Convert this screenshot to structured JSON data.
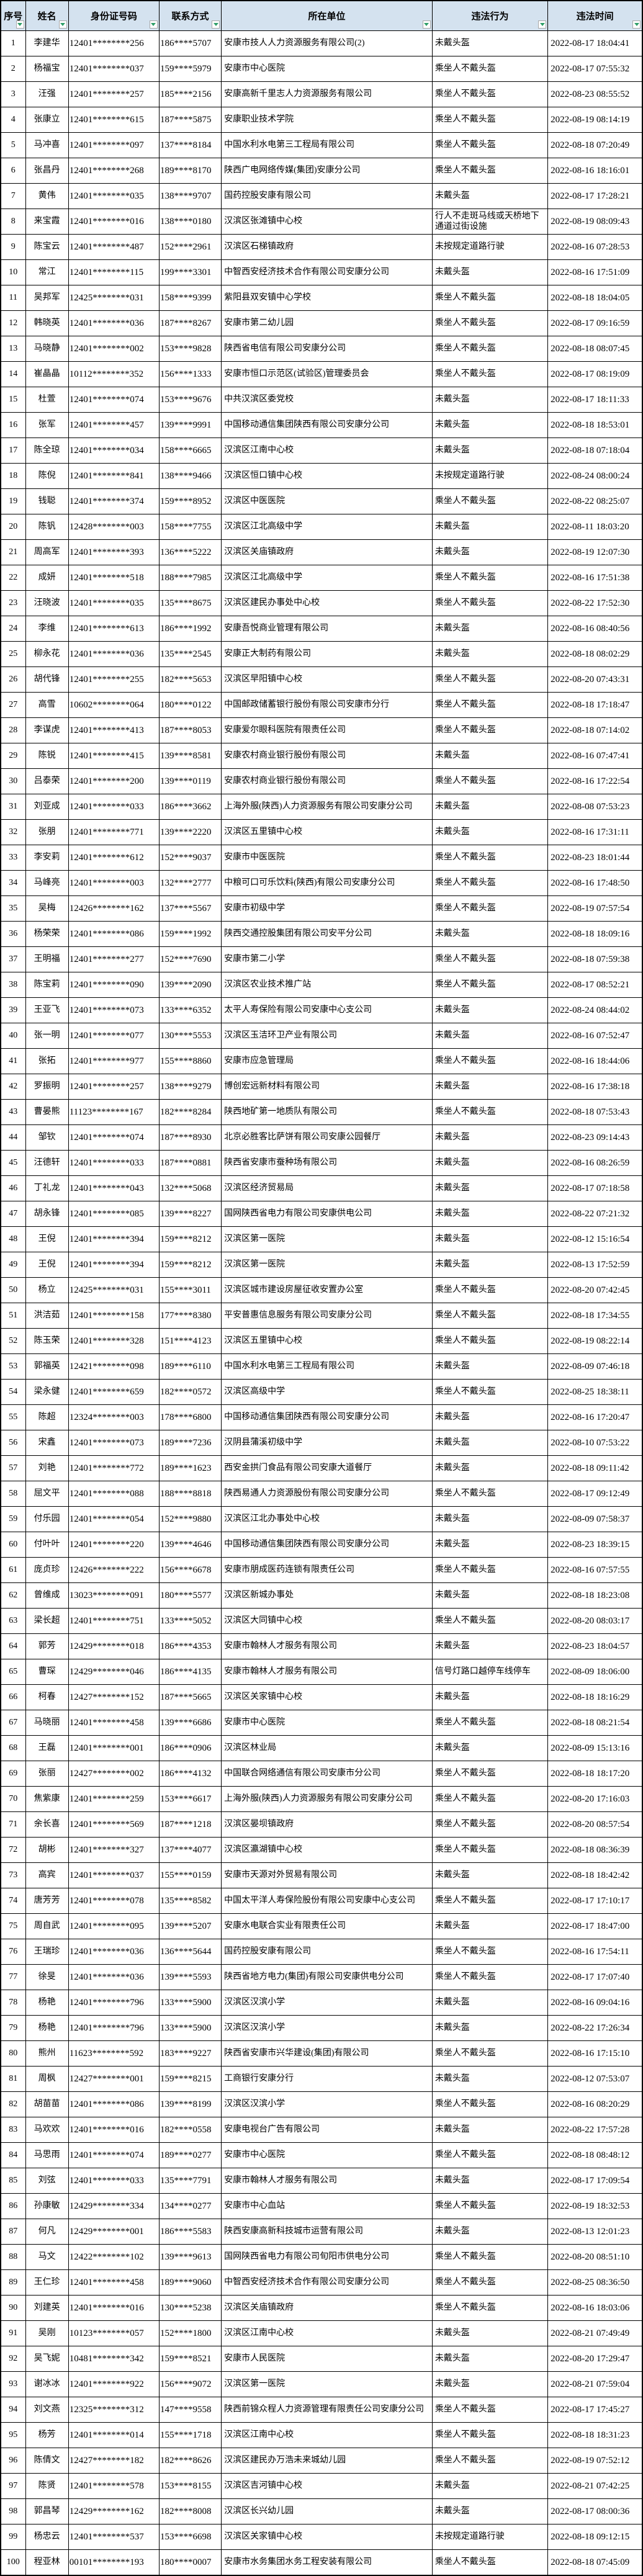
{
  "table": {
    "columns": [
      {
        "label": "序号"
      },
      {
        "label": "姓名"
      },
      {
        "label": "身份证号码"
      },
      {
        "label": "联系方式"
      },
      {
        "label": "所在单位"
      },
      {
        "label": "违法行为"
      },
      {
        "label": "违法时间"
      }
    ],
    "column_cell_names": [
      "cell-index",
      "cell-name",
      "cell-id-number",
      "cell-phone",
      "cell-unit",
      "cell-violation",
      "cell-time"
    ],
    "header_bg_color": "#d4e2ef",
    "filter_icon_color": "#2e9e68",
    "rows": [
      [
        "1",
        "李建华",
        "12401********256",
        "186****5707",
        "安康市技人人力资源服务有限公司(2)",
        "未戴头盔",
        "2022-08-17 18:04:41"
      ],
      [
        "2",
        "杨福宝",
        "12401********037",
        "159****5979",
        "安康市中心医院",
        "乘坐人不戴头盔",
        "2022-08-17 07:55:32"
      ],
      [
        "3",
        "汪强",
        "12401********257",
        "185****2156",
        "安康高新千里志人力资源服务有限公司",
        "乘坐人不戴头盔",
        "2022-08-23 08:55:52"
      ],
      [
        "4",
        "张康立",
        "12401********615",
        "187****5875",
        "安康职业技术学院",
        "乘坐人不戴头盔",
        "2022-08-19 08:14:19"
      ],
      [
        "5",
        "马冲喜",
        "12401********097",
        "137****8184",
        "中国水利水电第三工程局有限公司",
        "乘坐人不戴头盔",
        "2022-08-18 07:20:49"
      ],
      [
        "6",
        "张昌丹",
        "12401********268",
        "189****8170",
        "陕西广电网络传媒(集团)安康分公司",
        "乘坐人不戴头盔",
        "2022-08-16 18:16:01"
      ],
      [
        "7",
        "黄伟",
        "12401********035",
        "138****9707",
        "国药控股安康有限公司",
        "未戴头盔",
        "2022-08-17 17:28:21"
      ],
      [
        "8",
        "来宝霞",
        "12401********016",
        "138****0180",
        "汉滨区张滩镇中心校",
        "行人不走斑马线或天桥地下通道过街设施",
        "2022-08-19 08:09:43"
      ],
      [
        "9",
        "陈宝云",
        "12401********487",
        "152****2961",
        "汉滨区石梯镇政府",
        "未按规定道路行驶",
        "2022-08-16 07:28:53"
      ],
      [
        "10",
        "常江",
        "12401********115",
        "199****3301",
        "中智西安经济技术合作有限公司安康分公司",
        "未戴头盔",
        "2022-08-16 17:51:09"
      ],
      [
        "11",
        "吴邦军",
        "12425********031",
        "158****9399",
        "紫阳县双安镇中心学校",
        "乘坐人不戴头盔",
        "2022-08-18 18:04:05"
      ],
      [
        "12",
        "韩晓英",
        "12401********036",
        "187****8267",
        "安康市第二幼儿园",
        "乘坐人不戴头盔",
        "2022-08-17 09:16:59"
      ],
      [
        "13",
        "马晓静",
        "12401********002",
        "153****9828",
        "陕西省电信有限公司安康分公司",
        "乘坐人不戴头盔",
        "2022-08-18 08:07:45"
      ],
      [
        "14",
        "崔晶晶",
        "10112********352",
        "156****1333",
        "安康市恒口示范区(试验区)管理委员会",
        "乘坐人不戴头盔",
        "2022-08-17 08:19:09"
      ],
      [
        "15",
        "杜萱",
        "12401********074",
        "153****9676",
        "中共汉滨区委党校",
        "未戴头盔",
        "2022-08-17 18:11:33"
      ],
      [
        "16",
        "张军",
        "12401********457",
        "139****9991",
        "中国移动通信集团陕西有限公司安康分公司",
        "未戴头盔",
        "2022-08-18 18:53:01"
      ],
      [
        "17",
        "陈全琼",
        "12401********034",
        "158****6665",
        "汉滨区江南中心校",
        "未戴头盔",
        "2022-08-18 07:18:04"
      ],
      [
        "18",
        "陈倪",
        "12401********841",
        "138****9466",
        "汉滨区恒口镇中心校",
        "未按规定道路行驶",
        "2022-08-24 08:00:24"
      ],
      [
        "19",
        "钱聪",
        "12401********374",
        "159****8952",
        "汉滨区中医医院",
        "乘坐人不戴头盔",
        "2022-08-22 08:25:07"
      ],
      [
        "20",
        "陈钒",
        "12428********003",
        "158****7755",
        "汉滨区江北高级中学",
        "未戴头盔",
        "2022-08-11 18:03:20"
      ],
      [
        "21",
        "周高军",
        "12401********393",
        "136****5222",
        "汉滨区关庙镇政府",
        "未戴头盔",
        "2022-08-19 12:07:30"
      ],
      [
        "22",
        "成妍",
        "12401********518",
        "188****7985",
        "汉滨区江北高级中学",
        "乘坐人不戴头盔",
        "2022-08-16 17:51:38"
      ],
      [
        "23",
        "汪晓波",
        "12401********035",
        "135****8675",
        "汉滨区建民办事处中心校",
        "乘坐人不戴头盔",
        "2022-08-22 17:52:30"
      ],
      [
        "24",
        "李维",
        "12401********613",
        "186****1992",
        "安康吾悦商业管理有限公司",
        "未戴头盔",
        "2022-08-16 08:40:56"
      ],
      [
        "25",
        "柳永花",
        "12401********036",
        "135****2545",
        "安康正大制药有限公司",
        "未戴头盔",
        "2022-08-18 08:02:29"
      ],
      [
        "26",
        "胡代锋",
        "12401********255",
        "182****5653",
        "汉滨区早阳镇中心校",
        "乘坐人不戴头盔",
        "2022-08-20 07:43:31"
      ],
      [
        "27",
        "高雪",
        "10602********064",
        "180****0122",
        "中国邮政储蓄银行股份有限公司安康市分行",
        "乘坐人不戴头盔",
        "2022-08-18 17:18:47"
      ],
      [
        "28",
        "李谋虎",
        "12401********413",
        "187****8053",
        "安康爱尔眼科医院有限责任公司",
        "乘坐人不戴头盔",
        "2022-08-18 07:14:02"
      ],
      [
        "29",
        "陈锐",
        "12401********415",
        "139****8581",
        "安康农村商业银行股份有限公司",
        "未戴头盔",
        "2022-08-16 07:47:41"
      ],
      [
        "30",
        "吕泰荣",
        "12401********200",
        "139****0119",
        "安康农村商业银行股份有限公司",
        "乘坐人不戴头盔",
        "2022-08-16 17:22:54"
      ],
      [
        "31",
        "刘亚成",
        "12401********033",
        "186****3662",
        "上海外服(陕西)人力资源服务有限公司安康分公司",
        "未戴头盔",
        "2022-08-08 07:53:23"
      ],
      [
        "32",
        "张朋",
        "12401********771",
        "139****2220",
        "汉滨区五里镇中心校",
        "未戴头盔",
        "2022-08-16 17:31:11"
      ],
      [
        "33",
        "李安莉",
        "12401********612",
        "152****9037",
        "安康市中医医院",
        "乘坐人不戴头盔",
        "2022-08-23 18:01:44"
      ],
      [
        "34",
        "马峰亮",
        "12401********003",
        "132****2777",
        "中粮可口可乐饮料(陕西)有限公司安康分公司",
        "乘坐人不戴头盔",
        "2022-08-16 17:48:50"
      ],
      [
        "35",
        "吴梅",
        "12426********162",
        "137****5567",
        "安康市初级中学",
        "乘坐人不戴头盔",
        "2022-08-19 07:57:54"
      ],
      [
        "36",
        "杨荣荣",
        "12401********086",
        "159****1992",
        "陕西交通控股集团有限公司安平分公司",
        "未戴头盔",
        "2022-08-18 18:09:16"
      ],
      [
        "37",
        "王明福",
        "12401********277",
        "152****7690",
        "安康市第二小学",
        "乘坐人不戴头盔",
        "2022-08-18 07:59:38"
      ],
      [
        "38",
        "陈宝莉",
        "12401********090",
        "139****2090",
        "汉滨区农业技术推广站",
        "乘坐人不戴头盔",
        "2022-08-17 08:52:21"
      ],
      [
        "39",
        "王亚飞",
        "12401********073",
        "133****6352",
        "太平人寿保险有限公司安康中心支公司",
        "未戴头盔",
        "2022-08-24 08:44:02"
      ],
      [
        "40",
        "张一明",
        "12401********077",
        "130****5553",
        "汉滨区玉洁环卫产业有限公司",
        "未戴头盔",
        "2022-08-16 07:52:47"
      ],
      [
        "41",
        "张拓",
        "12401********977",
        "155****8860",
        "安康市应急管理局",
        "乘坐人不戴头盔",
        "2022-08-16 18:44:06"
      ],
      [
        "42",
        "罗振明",
        "12401********257",
        "138****9279",
        "博创宏远新材料有限公司",
        "未戴头盔",
        "2022-08-16 17:38:18"
      ],
      [
        "43",
        "曹晏熊",
        "11123********167",
        "182****8284",
        "陕西地矿第一地质队有限公司",
        "乘坐人不戴头盔",
        "2022-08-18 07:53:43"
      ],
      [
        "44",
        "邹钦",
        "12401********074",
        "187****8930",
        "北京必胜客比萨饼有限公司安康公园餐厅",
        "未戴头盔",
        "2022-08-23 09:14:43"
      ],
      [
        "45",
        "汪德轩",
        "12401********033",
        "187****0881",
        "陕西省安康市蚕种场有限公司",
        "未戴头盔",
        "2022-08-16 08:26:59"
      ],
      [
        "46",
        "丁礼龙",
        "12401********043",
        "132****5068",
        "汉滨区经济贸易局",
        "未戴头盔",
        "2022-08-17 07:18:58"
      ],
      [
        "47",
        "胡永锋",
        "12401********085",
        "139****8227",
        "国网陕西省电力有限公司安康供电公司",
        "未戴头盔",
        "2022-08-22 07:21:32"
      ],
      [
        "48",
        "王倪",
        "12401********394",
        "159****8212",
        "汉滨区第一医院",
        "未戴头盔",
        "2022-08-12 15:16:54"
      ],
      [
        "49",
        "王倪",
        "12401********394",
        "159****8212",
        "汉滨区第一医院",
        "未戴头盔",
        "2022-08-13 17:52:59"
      ],
      [
        "50",
        "杨立",
        "12425********031",
        "155****3011",
        "汉滨区城市建设房屋征收安置办公室",
        "乘坐人不戴头盔",
        "2022-08-20 07:42:45"
      ],
      [
        "51",
        "洪洁茹",
        "12401********158",
        "177****8380",
        "平安普惠信息服务有限公司安康分公司",
        "乘坐人不戴头盔",
        "2022-08-18 17:34:55"
      ],
      [
        "52",
        "陈玉荣",
        "12401********328",
        "151****4123",
        "汉滨区五里镇中心校",
        "乘坐人不戴头盔",
        "2022-08-19 08:22:14"
      ],
      [
        "53",
        "郭福英",
        "12421********098",
        "189****6110",
        "中国水利水电第三工程局有限公司",
        "未戴头盔",
        "2022-08-09 07:46:18"
      ],
      [
        "54",
        "梁永健",
        "12401********659",
        "182****0572",
        "汉滨区高级中学",
        "乘坐人不戴头盔",
        "2022-08-25 18:38:11"
      ],
      [
        "55",
        "陈超",
        "12324********003",
        "178****6800",
        "中国移动通信集团陕西有限公司安康分公司",
        "未戴头盔",
        "2022-08-16 17:20:47"
      ],
      [
        "56",
        "宋鑫",
        "12401********073",
        "189****7236",
        "汉阴县蒲溪初级中学",
        "未戴头盔",
        "2022-08-10 07:53:22"
      ],
      [
        "57",
        "刘艳",
        "12401********772",
        "189****1623",
        "西安金拱门食品有限公司安康大道餐厅",
        "未戴头盔",
        "2022-08-18 09:11:42"
      ],
      [
        "58",
        "屈文平",
        "12401********088",
        "188****8818",
        "陕西易通人力资源股份有限公司安康分公司",
        "乘坐人不戴头盔",
        "2022-08-17 09:12:49"
      ],
      [
        "59",
        "付乐园",
        "12401********054",
        "152****9880",
        "汉滨区江北办事处中心校",
        "未戴头盔",
        "2022-08-09 07:58:37"
      ],
      [
        "60",
        "付叶叶",
        "12401********220",
        "139****4646",
        "中国移动通信集团陕西有限公司安康分公司",
        "未戴头盔",
        "2022-08-23 18:39:15"
      ],
      [
        "61",
        "庞贞珍",
        "12426********222",
        "156****6678",
        "安康市朋成医药连锁有限责任公司",
        "乘坐人不戴头盔",
        "2022-08-16 07:57:55"
      ],
      [
        "62",
        "曾维成",
        "13023********091",
        "180****5577",
        "汉滨区新城办事处",
        "未戴头盔",
        "2022-08-18 18:23:08"
      ],
      [
        "63",
        "梁长超",
        "12401********751",
        "133****5052",
        "汉滨区大同镇中心校",
        "乘坐人不戴头盔",
        "2022-08-20 08:03:17"
      ],
      [
        "64",
        "郭芳",
        "12429********018",
        "186****4353",
        "安康市翰林人才服务有限公司",
        "未戴头盔",
        "2022-08-23 18:04:57"
      ],
      [
        "65",
        "曹琛",
        "12429********046",
        "186****4135",
        "安康市翰林人才服务有限公司",
        "信号灯路口越停车线停车",
        "2022-08-09 18:06:00"
      ],
      [
        "66",
        "柯春",
        "12427********152",
        "187****5665",
        "汉滨区关家镇中心校",
        "未戴头盔",
        "2022-08-18 18:16:29"
      ],
      [
        "67",
        "马晓丽",
        "12401********458",
        "139****6686",
        "安康市中心医院",
        "乘坐人不戴头盔",
        "2022-08-18 08:21:54"
      ],
      [
        "68",
        "王磊",
        "12401********001",
        "186****0906",
        "汉滨区林业局",
        "未戴头盔",
        "2022-08-09 15:13:16"
      ],
      [
        "69",
        "张丽",
        "12427********002",
        "186****4132",
        "中国联合网络通信有限公司安康市分公司",
        "乘坐人不戴头盔",
        "2022-08-18 18:17:20"
      ],
      [
        "70",
        "焦紫康",
        "12401********259",
        "153****6617",
        "上海外服(陕西)人力资源服务有限公司安康分公司",
        "乘坐人不戴头盔",
        "2022-08-20 17:16:03"
      ],
      [
        "71",
        "余长喜",
        "12401********569",
        "187****1218",
        "汉滨区晏坝镇政府",
        "乘坐人不戴头盔",
        "2022-08-20 08:57:54"
      ],
      [
        "72",
        "胡彬",
        "12401********327",
        "137****4077",
        "汉滨区瀛湖镇中心校",
        "乘坐人不戴头盔",
        "2022-08-18 08:36:39"
      ],
      [
        "73",
        "高宾",
        "12401********037",
        "155****0159",
        "安康市天源对外贸易有限公司",
        "未戴头盔",
        "2022-08-18 18:42:42"
      ],
      [
        "74",
        "唐芳芳",
        "12401********078",
        "135****8582",
        "中国太平洋人寿保险股份有限公司安康中心支公司",
        "乘坐人不戴头盔",
        "2022-08-17 17:10:17"
      ],
      [
        "75",
        "周自武",
        "12401********095",
        "139****5207",
        "安康水电联合实业有限责任公司",
        "未戴头盔",
        "2022-08-17 18:47:00"
      ],
      [
        "76",
        "王瑞珍",
        "12401********036",
        "136****5644",
        "国药控股安康有限公司",
        "乘坐人不戴头盔",
        "2022-08-16 17:54:11"
      ],
      [
        "77",
        "徐旻",
        "12401********036",
        "139****5593",
        "陕西省地方电力(集团)有限公司安康供电分公司",
        "乘坐人不戴头盔",
        "2022-08-17 17:07:40"
      ],
      [
        "78",
        "杨艳",
        "12401********796",
        "133****5900",
        "汉滨区汉滨小学",
        "未戴头盔",
        "2022-08-16 09:04:16"
      ],
      [
        "79",
        "杨艳",
        "12401********796",
        "133****5900",
        "汉滨区汉滨小学",
        "未戴头盔",
        "2022-08-22 17:26:34"
      ],
      [
        "80",
        "熊州",
        "11623********592",
        "183****9227",
        "陕西省安康市兴华建设(集团)有限公司",
        "乘坐人不戴头盔",
        "2022-08-16 17:15:10"
      ],
      [
        "81",
        "周枫",
        "12427********001",
        "159****8215",
        "工商银行安康分行",
        "未戴头盔",
        "2022-08-12 07:53:07"
      ],
      [
        "82",
        "胡苗苗",
        "12401********086",
        "139****8199",
        "汉滨区汉滨小学",
        "乘坐人不戴头盔",
        "2022-08-16 08:20:29"
      ],
      [
        "83",
        "马欢欢",
        "12401********016",
        "182****0558",
        "安康电视台广告有限公司",
        "未戴头盔",
        "2022-08-22 17:57:28"
      ],
      [
        "84",
        "马思雨",
        "12401********074",
        "189****0277",
        "安康市中心医院",
        "乘坐人不戴头盔",
        "2022-08-18 08:48:12"
      ],
      [
        "85",
        "刘弦",
        "12401********033",
        "135****7791",
        "安康市翰林人才服务有限公司",
        "未戴头盔",
        "2022-08-17 17:09:54"
      ],
      [
        "86",
        "孙康敏",
        "12429********334",
        "134****0277",
        "安康市中心血站",
        "乘坐人不戴头盔",
        "2022-08-19 18:32:53"
      ],
      [
        "87",
        "何凡",
        "12429********001",
        "186****5583",
        "陕西安康高新科技城市运营有限公司",
        "未戴头盔",
        "2022-08-13 12:01:23"
      ],
      [
        "88",
        "马文",
        "12422********102",
        "139****9613",
        "国网陕西省电力有限公司旬阳市供电分公司",
        "乘坐人不戴头盔",
        "2022-08-20 08:51:10"
      ],
      [
        "89",
        "王仁珍",
        "12401********458",
        "189****9060",
        "中智西安经济技术合作有限公司安康分公司",
        "乘坐人不戴头盔",
        "2022-08-25 08:36:50"
      ],
      [
        "90",
        "刘建英",
        "12401********016",
        "130****5238",
        "汉滨区关庙镇政府",
        "乘坐人不戴头盔",
        "2022-08-16 18:03:06"
      ],
      [
        "91",
        "吴刚",
        "10123********057",
        "152****1800",
        "汉滨区江南中心校",
        "未戴头盔",
        "2022-08-21 07:49:49"
      ],
      [
        "92",
        "吴飞妮",
        "10481********342",
        "159****8521",
        "安康市人民医院",
        "未戴头盔",
        "2022-08-20 17:29:47"
      ],
      [
        "93",
        "谢冰冰",
        "12401********922",
        "156****9072",
        "汉滨区第一医院",
        "未戴头盔",
        "2022-08-21 07:59:04"
      ],
      [
        "94",
        "刘文燕",
        "12325********312",
        "147****9558",
        "陕西前锦众程人力资源管理有限责任公司安康分公司",
        "乘坐人不戴头盔",
        "2022-08-17 17:45:27"
      ],
      [
        "95",
        "杨芳",
        "12401********014",
        "155****1718",
        "汉滨区江南中心校",
        "乘坐人不戴头盔",
        "2022-08-18 18:31:23"
      ],
      [
        "96",
        "陈倩文",
        "12427********182",
        "182****8626",
        "汉滨区建民办万浩未来城幼儿园",
        "乘坐人不戴头盔",
        "2022-08-19 07:52:12"
      ],
      [
        "97",
        "陈贤",
        "12401********578",
        "153****8155",
        "汉滨区吉河镇中心校",
        "未戴头盔",
        "2022-08-21 07:42:25"
      ],
      [
        "98",
        "郭昌琴",
        "12429********162",
        "182****8008",
        "汉滨区长兴幼儿园",
        "未戴头盔",
        "2022-08-17 08:00:36"
      ],
      [
        "99",
        "杨忠云",
        "12401********537",
        "153****6698",
        "汉滨区关家镇中心校",
        "未按规定道路行驶",
        "2022-08-18 09:12:15"
      ],
      [
        "100",
        "程亚林",
        "00101********193",
        "180****0007",
        "安康市水务集团水务工程安装有限公司",
        "乘坐人不戴头盔",
        "2022-08-18 07:45:09"
      ]
    ]
  }
}
